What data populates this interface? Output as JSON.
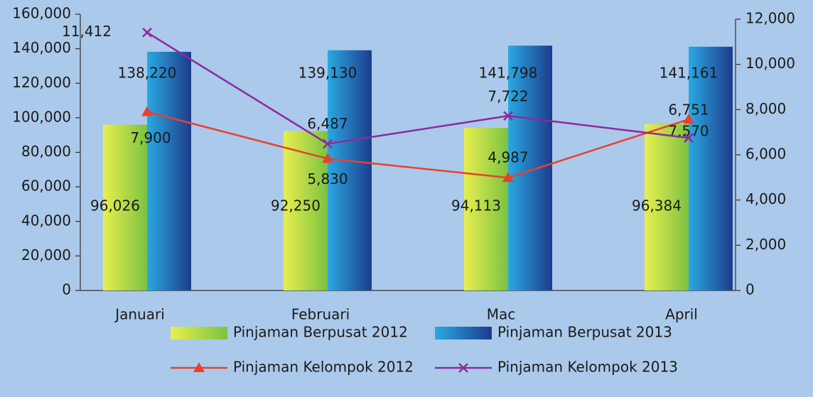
{
  "chart_data": {
    "type": "bar",
    "categories": [
      "Januari",
      "Februari",
      "Mac",
      "April"
    ],
    "series": [
      {
        "name": "Pinjaman Berpusat 2012",
        "type": "bar",
        "color": "#7cc242",
        "values": [
          96026,
          92250,
          94113,
          96384
        ],
        "value_labels": [
          "96,026",
          "92,250",
          "94,113",
          "96,384"
        ]
      },
      {
        "name": "Pinjaman Berpusat 2013",
        "type": "bar",
        "color": "#1d3c8c",
        "values": [
          138220,
          139130,
          141798,
          141161
        ],
        "value_labels": [
          "138,220",
          "139,130",
          "141,798",
          "141,161"
        ]
      },
      {
        "name": "Pinjaman Kelompok 2012",
        "type": "line",
        "axis": "y2",
        "marker": "triangle",
        "color": "#e8412c",
        "values": [
          7900,
          5830,
          4987,
          7570
        ],
        "value_labels": [
          "7,900",
          "5,830",
          "4,987",
          "7,570"
        ]
      },
      {
        "name": "Pinjaman Kelompok 2013",
        "type": "line",
        "axis": "y2",
        "marker": "x",
        "color": "#8e2a9c",
        "values": [
          11412,
          6487,
          7722,
          6751
        ],
        "value_labels": [
          "11,412",
          "6,487",
          "7,722",
          "6,751"
        ]
      }
    ],
    "ylim": [
      0,
      160000
    ],
    "yticks": [
      0,
      {
        "value": 20000,
        "label": "20,000"
      },
      {
        "value": 40000,
        "label": "40,000"
      },
      {
        "value": 60000,
        "label": "60,000"
      },
      {
        "value": 80000,
        "label": "80,000"
      },
      {
        "value": 100000,
        "label": "100,000"
      },
      {
        "value": 120000,
        "label": "120,000"
      },
      {
        "value": 140000,
        "label": "140,000"
      },
      {
        "value": 160000,
        "label": "160,000"
      }
    ],
    "y2lim": [
      0,
      12000
    ],
    "y2ticks": [
      0,
      {
        "value": 2000,
        "label": "2,000"
      },
      {
        "value": 4000,
        "label": "4,000"
      },
      {
        "value": 6000,
        "label": "6,000"
      },
      {
        "value": 8000,
        "label": "8,000"
      },
      {
        "value": 10000,
        "label": "10,000"
      },
      {
        "value": 12000,
        "label": "12,000"
      }
    ],
    "legend": "bottom"
  }
}
